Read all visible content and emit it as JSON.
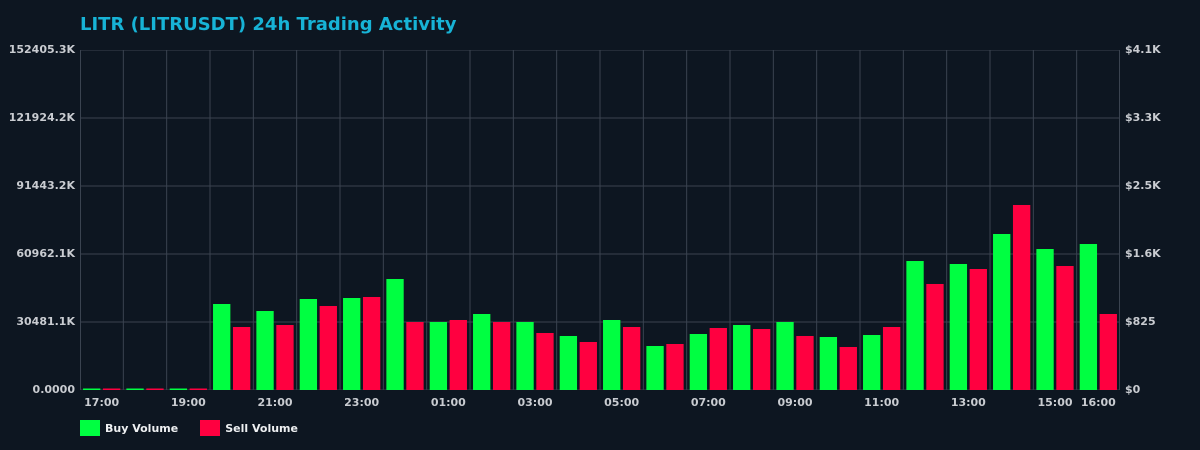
{
  "title": "LITR (LITRUSDT) 24h Trading Activity",
  "colors": {
    "background": "#0d1621",
    "grid": "#3a4350",
    "buy": "#00ff41",
    "sell": "#ff0040",
    "title": "#17b3d6",
    "text": "#c9ccd1"
  },
  "legend": {
    "buy_label": "Buy Volume",
    "sell_label": "Sell Volume"
  },
  "chart_data": {
    "type": "bar",
    "title": "LITR (LITRUSDT) 24h Trading Activity",
    "xlabel": "",
    "ylabel": "Volume",
    "y_left_ticks": [
      "0.0000",
      "30481.1K",
      "60962.1K",
      "91443.2K",
      "121924.2K",
      "152405.3K"
    ],
    "y_right_ticks": [
      "$0",
      "$825",
      "$1.6K",
      "$2.5K",
      "$3.3K",
      "$4.1K"
    ],
    "ylim": [
      0,
      152405.3
    ],
    "y_units": "K",
    "x_tick_labels": [
      "17:00",
      "19:00",
      "21:00",
      "23:00",
      "01:00",
      "03:00",
      "05:00",
      "07:00",
      "09:00",
      "11:00",
      "13:00",
      "15:00",
      "16:00"
    ],
    "grid": true,
    "legend_position": "bottom-left",
    "categories": [
      "17:00",
      "18:00",
      "19:00",
      "20:00",
      "21:00",
      "22:00",
      "23:00",
      "00:00",
      "01:00",
      "02:00",
      "03:00",
      "04:00",
      "05:00",
      "06:00",
      "07:00",
      "08:00",
      "09:00",
      "10:00",
      "11:00",
      "12:00",
      "13:00",
      "14:00",
      "15:00",
      "16:00"
    ],
    "series": [
      {
        "name": "Buy Volume",
        "color": "#00ff41",
        "values": [
          300,
          300,
          300,
          38550,
          35410,
          40790,
          41240,
          49760,
          30480,
          34070,
          30480,
          24210,
          31380,
          19720,
          25100,
          29140,
          30480,
          23760,
          24650,
          57820,
          56480,
          69930,
          63200,
          65440
        ]
      },
      {
        "name": "Sell Volume",
        "color": "#ff0040",
        "values": [
          300,
          300,
          300,
          28240,
          29140,
          37650,
          41690,
          30480,
          31380,
          30480,
          25550,
          21520,
          28240,
          20620,
          27790,
          27340,
          24210,
          19270,
          28240,
          47520,
          54240,
          82930,
          55580,
          34070
        ]
      }
    ]
  }
}
